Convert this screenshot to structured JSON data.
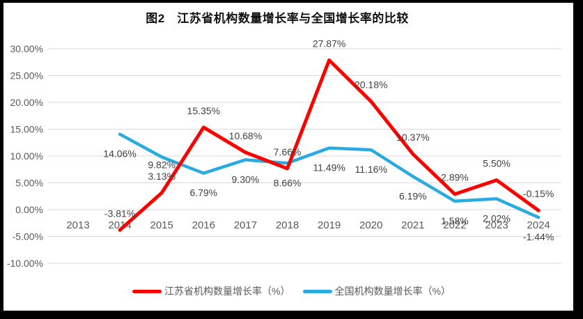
{
  "window": {
    "outer_background": "#000000",
    "canvas_background": "#ffffff"
  },
  "chart_data": {
    "type": "line",
    "title": "图2　江苏省机构数量增长率与全国增长率的比较",
    "categories": [
      "2013",
      "2014",
      "2015",
      "2016",
      "2017",
      "2018",
      "2019",
      "2020",
      "2021",
      "2022",
      "2023",
      "2024"
    ],
    "series": [
      {
        "name": "江苏省机构数量增长率（%）",
        "color": "#ff0000",
        "label_position": "above",
        "values": [
          null,
          -3.81,
          3.13,
          15.35,
          10.68,
          7.66,
          27.87,
          20.18,
          10.37,
          2.89,
          5.5,
          -0.15
        ],
        "labels": [
          null,
          "-3.81%",
          "3.13%",
          "15.35%",
          "10.68%",
          "7.66%",
          "27.87%",
          "20.18%",
          "10.37%",
          "2.89%",
          "5.50%",
          "-0.15%"
        ]
      },
      {
        "name": "全国机构数量增长率（%）",
        "color": "#29abe2",
        "label_position": "below",
        "values": [
          null,
          14.06,
          9.82,
          6.79,
          9.3,
          8.66,
          11.49,
          11.16,
          6.19,
          1.58,
          2.02,
          -1.44
        ],
        "labels": [
          null,
          "14.06%",
          "9.82%",
          "6.79%",
          "9.30%",
          "8.66%",
          "11.49%",
          "11.16%",
          "6.19%",
          "1.58%",
          "2.02%",
          "-1.44%"
        ]
      }
    ],
    "y_axis": {
      "min": -10,
      "max": 30,
      "step": 5,
      "tick_labels": [
        "30.00%",
        "25.00%",
        "20.00%",
        "15.00%",
        "10.00%",
        "5.00%",
        "0.00%",
        "-5.00%",
        "-10.00%"
      ]
    },
    "x_axis": {
      "label_row_near": "0.00% line"
    },
    "grid": "horizontal",
    "legend_position": "bottom",
    "colors": {
      "gridline": "#d9d9d9",
      "axis_text": "#595959",
      "data_label_text": "#404040"
    }
  }
}
